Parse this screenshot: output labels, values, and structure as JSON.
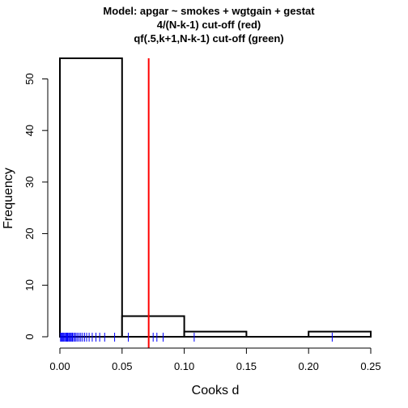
{
  "chart_data": {
    "type": "bar",
    "title_lines": [
      "Model: apgar ~ smokes + wgtgain + gestat",
      "4/(N-k-1) cut-off (red)",
      "qf(.5,k+1,N-k-1) cut-off (green)"
    ],
    "xlabel": "Cooks d",
    "ylabel": "Frequency",
    "xlim": [
      0,
      0.25
    ],
    "ylim": [
      0,
      54
    ],
    "x_ticks": [
      0.0,
      0.05,
      0.1,
      0.15,
      0.2,
      0.25
    ],
    "x_tick_labels": [
      "0.00",
      "0.05",
      "0.10",
      "0.15",
      "0.20",
      "0.25"
    ],
    "y_ticks": [
      0,
      10,
      20,
      30,
      40,
      50
    ],
    "y_tick_labels": [
      "0",
      "10",
      "20",
      "30",
      "40",
      "50"
    ],
    "bins": [
      {
        "start": 0.0,
        "end": 0.05,
        "count": 54
      },
      {
        "start": 0.05,
        "end": 0.1,
        "count": 4
      },
      {
        "start": 0.1,
        "end": 0.15,
        "count": 1
      },
      {
        "start": 0.15,
        "end": 0.2,
        "count": 0
      },
      {
        "start": 0.2,
        "end": 0.25,
        "count": 1
      }
    ],
    "cutoff_red": 0.0714,
    "rug_values": [
      0.0005,
      0.0012,
      0.0018,
      0.0025,
      0.0032,
      0.004,
      0.0048,
      0.0055,
      0.0062,
      0.007,
      0.0078,
      0.0085,
      0.0093,
      0.0101,
      0.011,
      0.012,
      0.013,
      0.0142,
      0.0155,
      0.0168,
      0.0182,
      0.0198,
      0.0215,
      0.0235,
      0.026,
      0.029,
      0.032,
      0.036,
      0.044,
      0.055,
      0.075,
      0.078,
      0.083,
      0.108,
      0.219
    ],
    "colors": {
      "bar_stroke": "#000000",
      "bar_fill": "#ffffff",
      "cutoff_red": "#ff0000",
      "rug": "#0000ff",
      "axis": "#000000"
    }
  }
}
